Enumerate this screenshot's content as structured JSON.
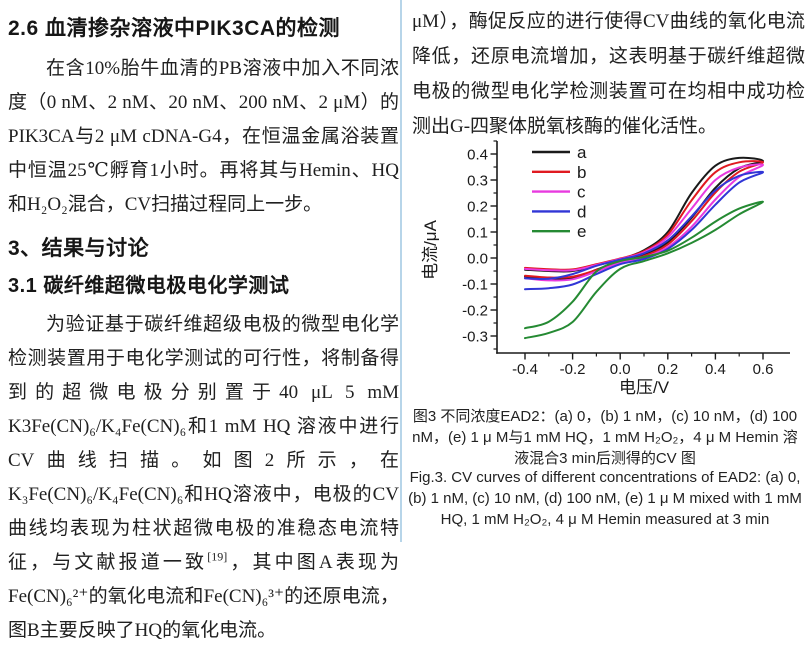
{
  "divider_color": "#b7d5e9",
  "left_column": {
    "heading_26": "2.6 血清掺杂溶液中PIK3CA的检测",
    "para_1": "在含10%胎牛血清的PB溶液中加入不同浓度（0 nM、2 nM、20 nM、200 nM、2 μM）的PIK3CA与2 μM cDNA-G4，在恒温金属浴装置中恒温25℃孵育1小时。再将其与Hemin、HQ 和H₂O₂混合，CV扫描过程同上一步。",
    "heading_3": "3、结果与讨论",
    "heading_31": "3.1 碳纤维超微电极电化学测试",
    "para_2a": "为验证基于碳纤维超级电极的微型电化学检测装置用于电化学测试的可行性，将制备得到的超微电极分别置于40 μL 5 mM K3Fe(CN)₆/K₄Fe(CN)₆和1 mM HQ 溶液中进行CV曲线扫描。如图2所示，在K₃Fe(CN)₆/K₄Fe(CN)₆和HQ溶液中，电极的CV曲线均表现为柱状超微电极的准稳态电流特征，与文献报道一致",
    "para_2_ref": "[19]",
    "para_2b": "，其中图A表现为Fe(CN)₆²⁺的氧化电流和Fe(CN)₆³⁺的还原电流，图B主要反映了HQ的氧化电流。"
  },
  "right_column": {
    "para_top": "μM），酶促反应的进行使得CV曲线的氧化电流降低，还原电流增加，这表明基于碳纤维超微电极的微型电化学检测装置可在均相中成功检测出G-四聚体脱氧核酶的催化活性。",
    "caption_cn": "图3 不同浓度EAD2：(a) 0，(b) 1 nM，(c) 10 nM，(d) 100 nM，(e) 1 μ M与1 mM HQ，1 mM H₂O₂，4 μ M Hemin 溶液混合3 min后测得的CV 图",
    "caption_en": "Fig.3. CV curves of different concentrations of EAD2: (a) 0, (b) 1 nM, (c) 10 nM, (d) 100 nM, (e) 1 μ M mixed with 1 mM HQ, 1 mM H₂O₂, 4 μ M Hemin measured at 3 min"
  },
  "chart_data": {
    "type": "line",
    "variant": "cyclic-voltammetry",
    "title": "",
    "xlabel": "电压/V",
    "ylabel": "电流/μA",
    "xlim": [
      -0.5,
      0.7
    ],
    "ylim": [
      -0.37,
      0.45
    ],
    "grid": false,
    "legend_position": "top-left-inside",
    "x_major_ticks": [
      -0.4,
      -0.2,
      0.0,
      0.2,
      0.4,
      0.6
    ],
    "x_minor_ticks": [
      -0.3,
      -0.1,
      0.1,
      0.3,
      0.5
    ],
    "x_tick_labels": [
      "-0.4",
      "-0.2",
      "0.0",
      "0.2",
      "0.4",
      "0.6"
    ],
    "y_major_ticks": [
      0.4,
      0.3,
      0.2,
      0.1,
      0.0,
      -0.1,
      -0.2,
      -0.3
    ],
    "y_minor_ticks": [
      0.45,
      0.35,
      0.25,
      0.15,
      0.05,
      -0.05,
      -0.15,
      -0.25,
      -0.35
    ],
    "y_tick_labels": [
      "0.4",
      "0.3",
      "0.2",
      "0.1",
      "0.0",
      "-0.1",
      "-0.2",
      "-0.3"
    ],
    "series": [
      {
        "name": "a",
        "concentration": "0",
        "color": "#1a1a1a",
        "forward": [
          [
            -0.4,
            -0.045
          ],
          [
            -0.3,
            -0.05
          ],
          [
            -0.2,
            -0.05
          ],
          [
            -0.1,
            -0.028
          ],
          [
            0,
            -0.005
          ],
          [
            0.1,
            0.03
          ],
          [
            0.2,
            0.1
          ],
          [
            0.3,
            0.25
          ],
          [
            0.4,
            0.355
          ],
          [
            0.5,
            0.385
          ],
          [
            0.6,
            0.373
          ]
        ],
        "reverse": [
          [
            0.6,
            0.373
          ],
          [
            0.5,
            0.345
          ],
          [
            0.4,
            0.27
          ],
          [
            0.3,
            0.155
          ],
          [
            0.2,
            0.06
          ],
          [
            0.1,
            0.012
          ],
          [
            0,
            -0.012
          ],
          [
            -0.1,
            -0.045
          ],
          [
            -0.2,
            -0.078
          ],
          [
            -0.3,
            -0.082
          ],
          [
            -0.4,
            -0.072
          ]
        ]
      },
      {
        "name": "b",
        "concentration": "1 nM",
        "color": "#e01a20",
        "forward": [
          [
            -0.4,
            -0.038
          ],
          [
            -0.3,
            -0.043
          ],
          [
            -0.2,
            -0.044
          ],
          [
            -0.1,
            -0.024
          ],
          [
            0,
            -0.002
          ],
          [
            0.1,
            0.026
          ],
          [
            0.2,
            0.09
          ],
          [
            0.3,
            0.222
          ],
          [
            0.4,
            0.33
          ],
          [
            0.5,
            0.368
          ],
          [
            0.6,
            0.368
          ]
        ],
        "reverse": [
          [
            0.6,
            0.368
          ],
          [
            0.5,
            0.332
          ],
          [
            0.4,
            0.252
          ],
          [
            0.3,
            0.142
          ],
          [
            0.2,
            0.052
          ],
          [
            0.1,
            0.008
          ],
          [
            0,
            -0.014
          ],
          [
            -0.1,
            -0.046
          ],
          [
            -0.2,
            -0.072
          ],
          [
            -0.3,
            -0.075
          ],
          [
            -0.4,
            -0.068
          ]
        ]
      },
      {
        "name": "c",
        "concentration": "10 nM",
        "color": "#e83adf",
        "forward": [
          [
            -0.4,
            -0.042
          ],
          [
            -0.3,
            -0.047
          ],
          [
            -0.2,
            -0.047
          ],
          [
            -0.1,
            -0.027
          ],
          [
            0,
            -0.004
          ],
          [
            0.1,
            0.022
          ],
          [
            0.2,
            0.08
          ],
          [
            0.3,
            0.19
          ],
          [
            0.4,
            0.3
          ],
          [
            0.5,
            0.348
          ],
          [
            0.6,
            0.358
          ]
        ],
        "reverse": [
          [
            0.6,
            0.358
          ],
          [
            0.5,
            0.312
          ],
          [
            0.4,
            0.225
          ],
          [
            0.3,
            0.12
          ],
          [
            0.2,
            0.042
          ],
          [
            0.1,
            0.002
          ],
          [
            0,
            -0.018
          ],
          [
            -0.1,
            -0.052
          ],
          [
            -0.2,
            -0.082
          ],
          [
            -0.3,
            -0.086
          ],
          [
            -0.4,
            -0.078
          ]
        ]
      },
      {
        "name": "d",
        "concentration": "100 nM",
        "color": "#3136d6",
        "forward": [
          [
            -0.4,
            -0.078
          ],
          [
            -0.3,
            -0.08
          ],
          [
            -0.2,
            -0.062
          ],
          [
            -0.1,
            -0.03
          ],
          [
            0,
            -0.006
          ],
          [
            0.1,
            0.018
          ],
          [
            0.2,
            0.068
          ],
          [
            0.3,
            0.16
          ],
          [
            0.4,
            0.26
          ],
          [
            0.5,
            0.316
          ],
          [
            0.6,
            0.33
          ]
        ],
        "reverse": [
          [
            0.6,
            0.33
          ],
          [
            0.5,
            0.29
          ],
          [
            0.4,
            0.205
          ],
          [
            0.3,
            0.108
          ],
          [
            0.2,
            0.035
          ],
          [
            0.1,
            -0.004
          ],
          [
            0,
            -0.024
          ],
          [
            -0.1,
            -0.062
          ],
          [
            -0.2,
            -0.102
          ],
          [
            -0.3,
            -0.116
          ],
          [
            -0.4,
            -0.12
          ]
        ]
      },
      {
        "name": "e",
        "concentration": "1 μM",
        "color": "#258a33",
        "forward": [
          [
            -0.4,
            -0.27
          ],
          [
            -0.3,
            -0.245
          ],
          [
            -0.2,
            -0.168
          ],
          [
            -0.1,
            -0.052
          ],
          [
            0,
            -0.012
          ],
          [
            0.1,
            0.004
          ],
          [
            0.2,
            0.028
          ],
          [
            0.3,
            0.078
          ],
          [
            0.4,
            0.14
          ],
          [
            0.5,
            0.19
          ],
          [
            0.6,
            0.216
          ]
        ],
        "reverse": [
          [
            0.6,
            0.216
          ],
          [
            0.5,
            0.168
          ],
          [
            0.4,
            0.108
          ],
          [
            0.3,
            0.058
          ],
          [
            0.2,
            0.018
          ],
          [
            0.1,
            -0.012
          ],
          [
            0,
            -0.042
          ],
          [
            -0.1,
            -0.13
          ],
          [
            -0.2,
            -0.246
          ],
          [
            -0.3,
            -0.288
          ],
          [
            -0.4,
            -0.308
          ]
        ]
      }
    ]
  }
}
